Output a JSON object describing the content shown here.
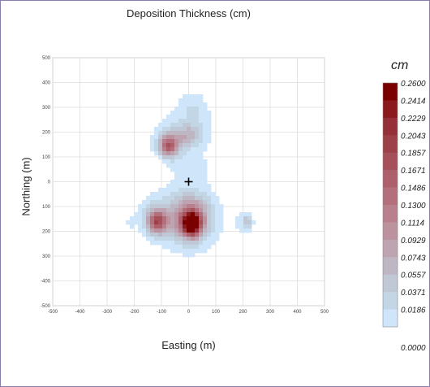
{
  "chart_data": {
    "type": "heatmap",
    "title": "Deposition Thickness (cm)",
    "xlabel": "Easting (m)",
    "ylabel": "Northing (m)",
    "xlim": [
      -500,
      500
    ],
    "ylim": [
      -500,
      500
    ],
    "x_ticks": [
      "-500",
      "-400",
      "-300",
      "-200",
      "-100",
      "0",
      "100",
      "200",
      "300",
      "400",
      "500"
    ],
    "y_ticks": [
      "500",
      "400",
      "300",
      "200",
      "100",
      "0",
      "100",
      "200",
      "300",
      "-400",
      "-500"
    ],
    "grid": true,
    "source_marker": {
      "x": 0,
      "y": 0,
      "symbol": "+"
    },
    "colorbar": {
      "unit": "cm",
      "levels": [
        "0.2600",
        "0.2414",
        "0.2229",
        "0.2043",
        "0.1857",
        "0.1671",
        "0.1486",
        "0.1300",
        "0.1114",
        "0.0929",
        "0.0743",
        "0.0557",
        "0.0371",
        "0.0186",
        "0.0000"
      ],
      "colors": [
        "#7a0000",
        "#8b1a1f",
        "#953038",
        "#9e4048",
        "#a65059",
        "#ad606b",
        "#b3707c",
        "#b8808d",
        "#bc929e",
        "#bea4b0",
        "#bfb6c3",
        "#c0c8d6",
        "#c2d6e6",
        "#cfe6fa"
      ]
    },
    "plumes": [
      {
        "cx": 0,
        "cy": -25,
        "rx": 55,
        "ry": 290,
        "peak": 0.01
      },
      {
        "cx": 0,
        "cy": 230,
        "rx": 105,
        "ry": 95,
        "peak": 0.02
      },
      {
        "cx": 20,
        "cy": 290,
        "rx": 30,
        "ry": 45,
        "peak": 0.02
      },
      {
        "cx": -20,
        "cy": 60,
        "rx": 40,
        "ry": 40,
        "peak": 0.01
      },
      {
        "cx": 30,
        "cy": 60,
        "rx": 40,
        "ry": 40,
        "peak": 0.01
      },
      {
        "cx": -65,
        "cy": 160,
        "rx": 40,
        "ry": 40,
        "peak": 0.06
      },
      {
        "cx": -75,
        "cy": 140,
        "rx": 22,
        "ry": 28,
        "peak": 0.12
      },
      {
        "cx": 0,
        "cy": 190,
        "rx": 35,
        "ry": 30,
        "peak": 0.05
      },
      {
        "cx": 15,
        "cy": -140,
        "rx": 95,
        "ry": 90,
        "peak": 0.03
      },
      {
        "cx": 10,
        "cy": -150,
        "rx": 45,
        "ry": 60,
        "peak": 0.12
      },
      {
        "cx": 10,
        "cy": -170,
        "rx": 22,
        "ry": 30,
        "peak": 0.25
      },
      {
        "cx": -110,
        "cy": -145,
        "rx": 60,
        "ry": 70,
        "peak": 0.04
      },
      {
        "cx": -115,
        "cy": -160,
        "rx": 25,
        "ry": 32,
        "peak": 0.16
      },
      {
        "cx": 205,
        "cy": -170,
        "rx": 32,
        "ry": 50,
        "peak": 0.02
      },
      {
        "cx": 215,
        "cy": -160,
        "rx": 12,
        "ry": 18,
        "peak": 0.05
      },
      {
        "cx": -215,
        "cy": -160,
        "rx": 10,
        "ry": 18,
        "peak": 0.02
      }
    ]
  }
}
